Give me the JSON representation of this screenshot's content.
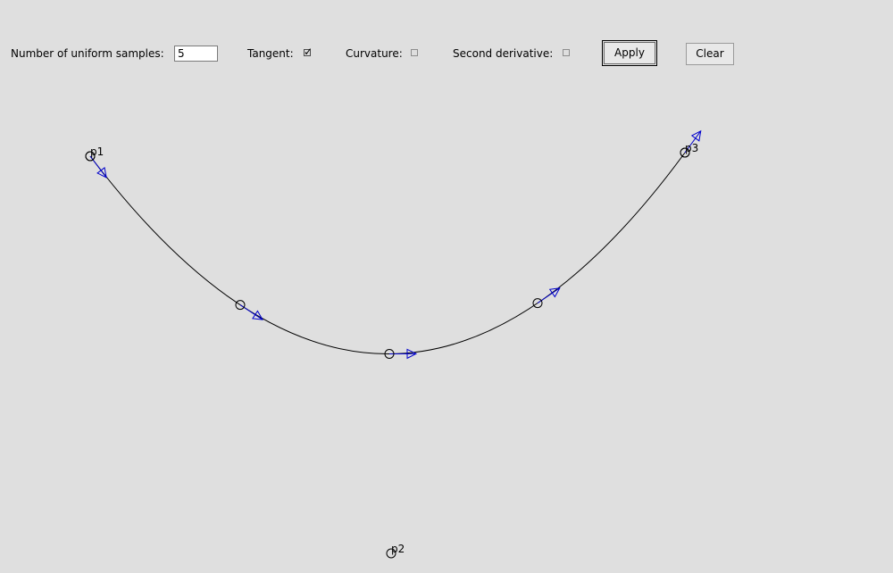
{
  "controls": {
    "samples_label": "Number of uniform samples:",
    "samples_value": "5",
    "tangent_label": "Tangent:",
    "tangent_checked": true,
    "curvature_label": "Curvature:",
    "curvature_checked": false,
    "second_derivative_label": "Second derivative:",
    "second_derivative_checked": false,
    "apply_label": "Apply",
    "clear_label": "Clear"
  },
  "colors": {
    "curve": "#000000",
    "tangent": "#0000cc",
    "background": "#dfdfdf"
  },
  "control_points": [
    {
      "label": "p1"
    },
    {
      "label": "p2"
    },
    {
      "label": "p3"
    }
  ]
}
